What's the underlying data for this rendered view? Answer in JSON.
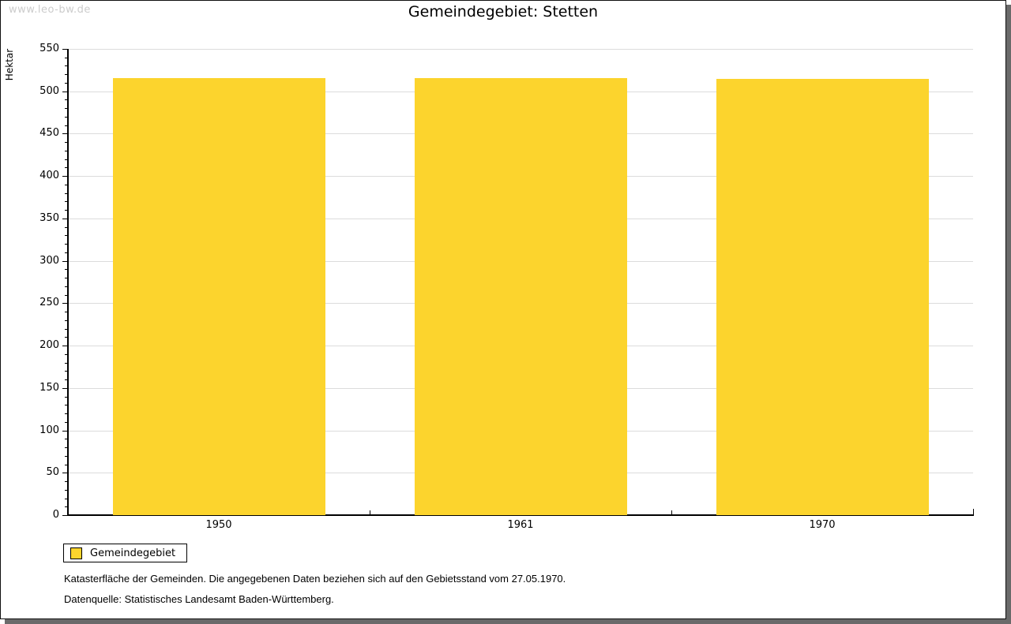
{
  "watermark": "www.leo-bw.de",
  "header": {
    "title": "Gemeindegebiet: Stetten"
  },
  "chart_data": {
    "type": "bar",
    "title": "Gemeindegebiet: Stetten",
    "categories": [
      "1950",
      "1961",
      "1970"
    ],
    "series": [
      {
        "name": "Gemeindegebiet",
        "values": [
          516,
          516,
          515
        ]
      }
    ],
    "xlabel": "",
    "ylabel": "Hektar",
    "ylim": [
      0,
      550
    ],
    "y_major_step": 50,
    "y_minor_step": 10,
    "grid": "horizontal-major",
    "gridline_color": "#dcdcdc",
    "bar_color": "#FCD42D",
    "legend_position": "bottom-left"
  },
  "legend": {
    "items": [
      {
        "label": "Gemeindegebiet",
        "color": "#FCD42D"
      }
    ]
  },
  "notes": [
    "Katasterfläche der Gemeinden. Die angegebenen Daten beziehen sich auf den Gebietsstand vom 27.05.1970.",
    "Datenquelle: Statistisches Landesamt Baden-Württemberg."
  ]
}
